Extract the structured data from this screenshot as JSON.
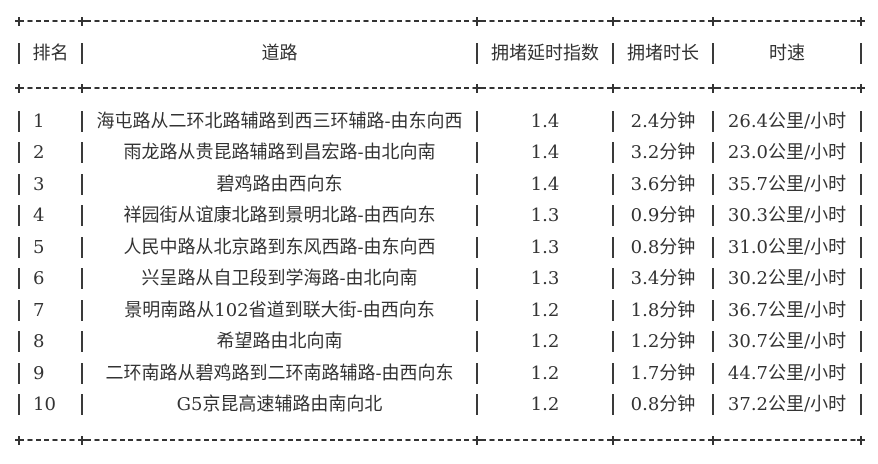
{
  "chart_data": {
    "type": "table",
    "columns": [
      "排名",
      "道路",
      "拥堵延时指数",
      "拥堵时长",
      "时速"
    ],
    "rows": [
      [
        "1",
        "海屯路从二环北路辅路到西三环辅路-由东向西",
        "1.4",
        "2.4分钟",
        "26.4公里/小时"
      ],
      [
        "2",
        "雨龙路从贵昆路辅路到昌宏路-由北向南",
        "1.4",
        "3.2分钟",
        "23.0公里/小时"
      ],
      [
        "3",
        "碧鸡路由西向东",
        "1.4",
        "3.6分钟",
        "35.7公里/小时"
      ],
      [
        "4",
        "祥园街从谊康北路到景明北路-由西向东",
        "1.3",
        "0.9分钟",
        "30.3公里/小时"
      ],
      [
        "5",
        "人民中路从北京路到东风西路-由东向西",
        "1.3",
        "0.8分钟",
        "31.0公里/小时"
      ],
      [
        "6",
        "兴呈路从自卫段到学海路-由北向南",
        "1.3",
        "3.4分钟",
        "30.2公里/小时"
      ],
      [
        "7",
        "景明南路从102省道到联大街-由西向东",
        "1.2",
        "1.8分钟",
        "36.7公里/小时"
      ],
      [
        "8",
        "希望路由北向南",
        "1.2",
        "1.2分钟",
        "30.7公里/小时"
      ],
      [
        "9",
        "二环南路从碧鸡路到二环南路辅路-由西向东",
        "1.2",
        "1.7分钟",
        "44.7公里/小时"
      ],
      [
        "10",
        "G5京昆高速辅路由南向北",
        "1.2",
        "0.8分钟",
        "37.2公里/小时"
      ]
    ],
    "units": {
      "duration": "分钟",
      "speed": "公里/小时"
    },
    "border_chars": {
      "horizontal": "-",
      "vertical": "|",
      "joint": "+"
    },
    "colors": {
      "text": "#333333",
      "border": "#333333",
      "background": "#ffffff"
    },
    "layout_hint": "ascii-style bordered table, all cells centered, rank column left-padded"
  }
}
